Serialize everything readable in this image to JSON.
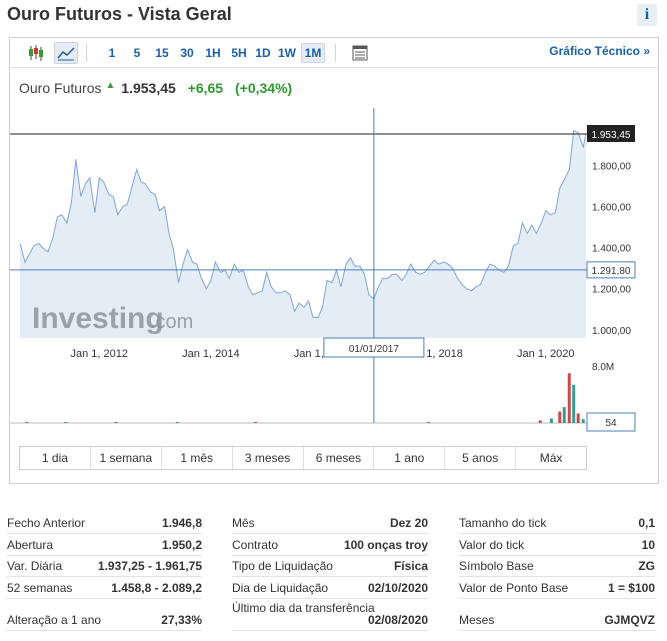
{
  "page": {
    "title": "Ouro Futuros - Vista Geral",
    "info_icon": "i"
  },
  "toolbar": {
    "icons": [
      "candlestick-icon",
      "area-chart-icon",
      "table-icon"
    ],
    "intervals": [
      "1",
      "5",
      "15",
      "30",
      "1H",
      "5H",
      "1D",
      "1W",
      "1M"
    ],
    "active_interval": "1M",
    "technical_link": "Gráfico Técnico »"
  },
  "quote": {
    "name": "Ouro Futuros",
    "arrow": "▲",
    "price": "1.953,45",
    "change": "+6,65",
    "change_pct": "(+0,34%)",
    "up_color": "#2e9a2e"
  },
  "watermark": {
    "brand": "Investing",
    "suffix": ".com"
  },
  "chart_data": {
    "type": "area",
    "x_tick_labels": [
      "Jan 1, 2012",
      "Jan 1, 2014",
      "Jan 1, 2016",
      "Jan 1, 2018",
      "Jan 1, 2020"
    ],
    "y_tick_labels": [
      "1.800,00",
      "1.600,00",
      "1.400,00",
      "1.200,00",
      "1.000,00"
    ],
    "y_ticks": [
      1800,
      1600,
      1400,
      1200,
      1000
    ],
    "ylim": [
      960,
      2080
    ],
    "xlim": [
      2010.58,
      2020.72
    ],
    "last_price_label": "1.953,45",
    "last_price": 1953.45,
    "crosshair_price_label": "1.291,80",
    "crosshair_price": 1291.8,
    "crosshair_date_label": "01/01/2017",
    "crosshair_date": 2016.92,
    "volume_max_label": "8.0M",
    "volume_cursor_label": "54",
    "series": [
      {
        "values": [
          [
            2010.58,
            1420
          ],
          [
            2010.67,
            1330
          ],
          [
            2010.75,
            1370
          ],
          [
            2010.83,
            1410
          ],
          [
            2010.92,
            1420
          ],
          [
            2011.0,
            1395
          ],
          [
            2011.08,
            1380
          ],
          [
            2011.17,
            1450
          ],
          [
            2011.25,
            1550
          ],
          [
            2011.33,
            1560
          ],
          [
            2011.42,
            1520
          ],
          [
            2011.5,
            1620
          ],
          [
            2011.58,
            1830
          ],
          [
            2011.67,
            1650
          ],
          [
            2011.75,
            1710
          ],
          [
            2011.83,
            1740
          ],
          [
            2011.92,
            1570
          ],
          [
            2012.0,
            1740
          ],
          [
            2012.08,
            1720
          ],
          [
            2012.17,
            1660
          ],
          [
            2012.25,
            1650
          ],
          [
            2012.33,
            1560
          ],
          [
            2012.42,
            1600
          ],
          [
            2012.5,
            1610
          ],
          [
            2012.58,
            1690
          ],
          [
            2012.67,
            1780
          ],
          [
            2012.75,
            1720
          ],
          [
            2012.83,
            1710
          ],
          [
            2012.92,
            1670
          ],
          [
            2013.0,
            1660
          ],
          [
            2013.08,
            1580
          ],
          [
            2013.17,
            1600
          ],
          [
            2013.25,
            1470
          ],
          [
            2013.33,
            1390
          ],
          [
            2013.42,
            1230
          ],
          [
            2013.5,
            1320
          ],
          [
            2013.58,
            1390
          ],
          [
            2013.67,
            1330
          ],
          [
            2013.75,
            1320
          ],
          [
            2013.83,
            1250
          ],
          [
            2013.92,
            1200
          ],
          [
            2014.0,
            1240
          ],
          [
            2014.08,
            1330
          ],
          [
            2014.17,
            1280
          ],
          [
            2014.25,
            1290
          ],
          [
            2014.33,
            1250
          ],
          [
            2014.42,
            1320
          ],
          [
            2014.5,
            1280
          ],
          [
            2014.58,
            1290
          ],
          [
            2014.67,
            1210
          ],
          [
            2014.75,
            1170
          ],
          [
            2014.83,
            1180
          ],
          [
            2014.92,
            1190
          ],
          [
            2015.0,
            1280
          ],
          [
            2015.08,
            1210
          ],
          [
            2015.17,
            1180
          ],
          [
            2015.25,
            1180
          ],
          [
            2015.33,
            1190
          ],
          [
            2015.42,
            1170
          ],
          [
            2015.5,
            1090
          ],
          [
            2015.58,
            1130
          ],
          [
            2015.67,
            1110
          ],
          [
            2015.75,
            1140
          ],
          [
            2015.83,
            1060
          ],
          [
            2015.92,
            1060
          ],
          [
            2016.0,
            1110
          ],
          [
            2016.08,
            1240
          ],
          [
            2016.17,
            1230
          ],
          [
            2016.25,
            1290
          ],
          [
            2016.33,
            1210
          ],
          [
            2016.42,
            1320
          ],
          [
            2016.5,
            1350
          ],
          [
            2016.58,
            1310
          ],
          [
            2016.67,
            1310
          ],
          [
            2016.75,
            1270
          ],
          [
            2016.83,
            1170
          ],
          [
            2016.92,
            1150
          ],
          [
            2017.0,
            1210
          ],
          [
            2017.08,
            1250
          ],
          [
            2017.17,
            1250
          ],
          [
            2017.25,
            1270
          ],
          [
            2017.33,
            1270
          ],
          [
            2017.42,
            1240
          ],
          [
            2017.5,
            1270
          ],
          [
            2017.58,
            1320
          ],
          [
            2017.67,
            1280
          ],
          [
            2017.75,
            1270
          ],
          [
            2017.83,
            1280
          ],
          [
            2017.92,
            1310
          ],
          [
            2018.0,
            1340
          ],
          [
            2018.08,
            1320
          ],
          [
            2018.17,
            1330
          ],
          [
            2018.25,
            1320
          ],
          [
            2018.33,
            1300
          ],
          [
            2018.42,
            1250
          ],
          [
            2018.5,
            1220
          ],
          [
            2018.58,
            1200
          ],
          [
            2018.67,
            1190
          ],
          [
            2018.75,
            1210
          ],
          [
            2018.83,
            1220
          ],
          [
            2018.92,
            1280
          ],
          [
            2019.0,
            1320
          ],
          [
            2019.08,
            1310
          ],
          [
            2019.17,
            1290
          ],
          [
            2019.25,
            1280
          ],
          [
            2019.33,
            1310
          ],
          [
            2019.42,
            1410
          ],
          [
            2019.5,
            1420
          ],
          [
            2019.58,
            1520
          ],
          [
            2019.67,
            1470
          ],
          [
            2019.75,
            1510
          ],
          [
            2019.83,
            1470
          ],
          [
            2019.92,
            1520
          ],
          [
            2020.0,
            1580
          ],
          [
            2020.08,
            1560
          ],
          [
            2020.17,
            1570
          ],
          [
            2020.25,
            1690
          ],
          [
            2020.33,
            1730
          ],
          [
            2020.42,
            1780
          ],
          [
            2020.5,
            1970
          ],
          [
            2020.58,
            1960
          ],
          [
            2020.67,
            1890
          ],
          [
            2020.72,
            1953.45
          ]
        ]
      }
    ],
    "volume": {
      "max": 8000000,
      "values": [
        [
          2010.7,
          40000
        ],
        [
          2011.4,
          40000
        ],
        [
          2012.3,
          40000
        ],
        [
          2013.4,
          40000
        ],
        [
          2014.8,
          40000
        ],
        [
          2017.9,
          40000
        ],
        [
          2019.9,
          400000
        ],
        [
          2020.1,
          700000
        ],
        [
          2020.25,
          1800000
        ],
        [
          2020.33,
          2500000
        ],
        [
          2020.42,
          7800000
        ],
        [
          2020.5,
          6000000
        ],
        [
          2020.58,
          1500000
        ],
        [
          2020.67,
          600000
        ]
      ]
    }
  },
  "ranges": [
    "1 dia",
    "1 semana",
    "1 mês",
    "3 meses",
    "6 meses",
    "1 ano",
    "5 anos",
    "Máx"
  ],
  "stats": {
    "col1": [
      {
        "label": "Fecho Anterior",
        "value": "1.946,8"
      },
      {
        "label": "Abertura",
        "value": "1.950,2"
      },
      {
        "label": "Var. Diária",
        "value": "1.937,25 - 1.961,75"
      },
      {
        "label": "52 semanas",
        "value": "1.458,8 - 2.089,2"
      },
      {
        "label": "Alteração a 1 ano",
        "value": "27,33%"
      }
    ],
    "col2": [
      {
        "label": "Mês",
        "value": "Dez 20"
      },
      {
        "label": "Contrato",
        "value": "100 onças troy"
      },
      {
        "label": "Tipo de Liquidação",
        "value": "Física"
      },
      {
        "label": "Dia de Liquidação",
        "value": "02/10/2020"
      },
      {
        "label": "Último dia da transferência",
        "value": "02/08/2020"
      }
    ],
    "col3": [
      {
        "label": "Tamanho do tick",
        "value": "0,1"
      },
      {
        "label": "Valor do tick",
        "value": "10"
      },
      {
        "label": "Símbolo Base",
        "value": "ZG"
      },
      {
        "label": "Valor de Ponto Base",
        "value": "1 = $100"
      },
      {
        "label": "Meses",
        "value": "GJMQVZ"
      }
    ]
  }
}
